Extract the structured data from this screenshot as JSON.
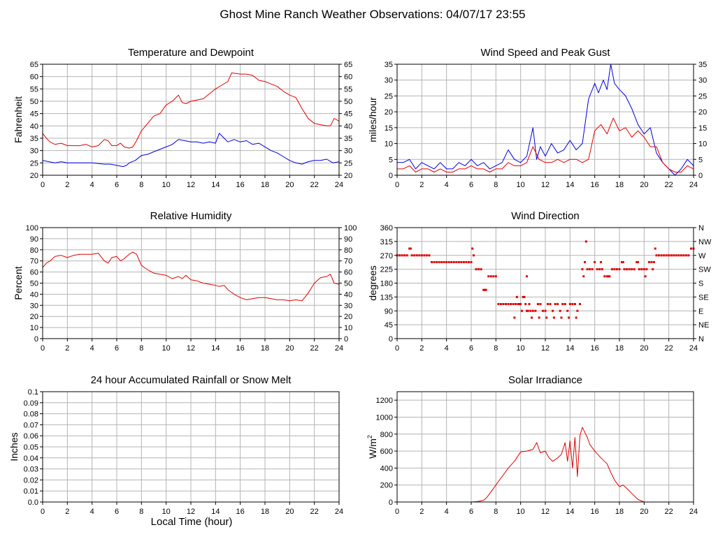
{
  "page_title": "Ghost Mine Ranch Weather Observations: 04/07/17 23:55",
  "x_axis_label": "Local Time (hour)",
  "x_ticks": [
    "0",
    "2",
    "4",
    "6",
    "8",
    "10",
    "12",
    "14",
    "16",
    "18",
    "20",
    "22",
    "24"
  ],
  "colors": {
    "red": "#e00000",
    "blue": "#0000e0",
    "grid": "#b4b4b4"
  },
  "chart_data": [
    {
      "type": "line",
      "title": "Temperature and Dewpoint",
      "xlabel": "",
      "ylabel": "Fahrenheit",
      "xlim": [
        0,
        24
      ],
      "ylim": [
        20,
        65
      ],
      "y_ticks": [
        "20",
        "25",
        "30",
        "35",
        "40",
        "45",
        "50",
        "55",
        "60",
        "65"
      ],
      "right_y_ticks": [
        "20",
        "25",
        "30",
        "35",
        "40",
        "45",
        "50",
        "55",
        "60",
        "65"
      ],
      "grid": true,
      "series": [
        {
          "color": "red",
          "x": [
            0,
            0.3,
            0.6,
            1,
            1.5,
            2,
            2.5,
            3,
            3.5,
            4,
            4.5,
            5,
            5.3,
            5.6,
            6,
            6.3,
            6.6,
            7,
            7.3,
            7.6,
            8,
            8.5,
            9,
            9.5,
            10,
            10.5,
            11,
            11.3,
            11.6,
            12,
            12.5,
            13,
            13.5,
            14,
            14.5,
            15,
            15.3,
            16,
            16.5,
            17,
            17.5,
            18,
            18.5,
            19,
            19.5,
            20,
            20.5,
            21,
            21.5,
            22,
            22.5,
            23,
            23.3,
            23.6,
            24
          ],
          "y": [
            37,
            35,
            33.5,
            32.5,
            33,
            32,
            32,
            32,
            32.5,
            31.5,
            32,
            34.5,
            34,
            32,
            32,
            33,
            31.5,
            31,
            31.5,
            34,
            38,
            41,
            44,
            45,
            48.5,
            50,
            52.5,
            49.5,
            49,
            50,
            50.5,
            51,
            53,
            55,
            56.5,
            58,
            61.5,
            61,
            61,
            60.5,
            58.5,
            58,
            57,
            56,
            54,
            52.5,
            51.5,
            47,
            43,
            41,
            40.5,
            40,
            40,
            43,
            42
          ]
        },
        {
          "color": "blue",
          "x": [
            0,
            0.5,
            1,
            1.5,
            2,
            3,
            4,
            5,
            5.5,
            6,
            6.5,
            6.8,
            7,
            7.5,
            8,
            8.5,
            9,
            9.5,
            10,
            10.5,
            11,
            11.5,
            12,
            12.5,
            13,
            13.5,
            14,
            14.3,
            14.7,
            15,
            15.5,
            16,
            16.5,
            17,
            17.5,
            18,
            18.5,
            19,
            19.5,
            20,
            20.5,
            21,
            21.5,
            22,
            22.5,
            23,
            23.5,
            24
          ],
          "y": [
            26,
            25.5,
            25,
            25.5,
            25,
            25,
            25,
            24.5,
            24.5,
            24,
            23.5,
            24,
            25,
            26,
            28,
            28.5,
            29.5,
            30.5,
            31.5,
            32.5,
            34.5,
            34,
            33.5,
            33.5,
            33,
            33.5,
            33,
            37,
            35,
            33.5,
            34.5,
            33.5,
            34,
            32.5,
            33,
            31.5,
            30,
            29,
            27.5,
            26,
            25,
            24.5,
            25.5,
            26,
            26,
            26.5,
            25,
            25.5
          ]
        }
      ]
    },
    {
      "type": "line",
      "title": "Wind Speed and Peak Gust",
      "xlabel": "",
      "ylabel": "miles/hour",
      "xlim": [
        0,
        24
      ],
      "ylim": [
        0,
        35
      ],
      "y_ticks": [
        "0",
        "5",
        "10",
        "15",
        "20",
        "25",
        "30",
        "35"
      ],
      "right_y_ticks": [
        "0",
        "5",
        "10",
        "15",
        "20",
        "25",
        "30",
        "35"
      ],
      "grid": true,
      "series": [
        {
          "color": "blue",
          "x": [
            0,
            0.5,
            1,
            1.5,
            2,
            2.5,
            3,
            3.5,
            4,
            4.5,
            5,
            5.5,
            6,
            6.5,
            7,
            7.5,
            8,
            8.5,
            9,
            9.5,
            10,
            10.5,
            11,
            11.3,
            11.6,
            12,
            12.5,
            13,
            13.5,
            14,
            14.5,
            15,
            15.5,
            16,
            16.3,
            16.7,
            17,
            17.3,
            17.6,
            18,
            18.5,
            19,
            19.5,
            20,
            20.5,
            21,
            21.5,
            22,
            22.5,
            23,
            23.5,
            24
          ],
          "y": [
            4,
            4,
            5,
            2,
            4,
            3,
            2,
            4,
            2,
            2,
            4,
            3,
            5,
            3,
            4,
            2,
            3,
            4,
            8,
            5,
            4,
            6,
            15,
            5,
            9,
            6,
            10,
            7,
            8,
            11,
            8,
            10,
            24,
            29,
            26,
            30,
            27,
            35,
            29,
            27,
            25,
            21,
            16,
            13,
            15,
            7,
            4,
            2,
            0,
            2,
            5,
            3
          ]
        },
        {
          "color": "red",
          "x": [
            0,
            0.5,
            1,
            1.5,
            2,
            2.5,
            3,
            3.5,
            4,
            4.5,
            5,
            5.5,
            6,
            6.5,
            7,
            7.5,
            8,
            8.5,
            9,
            9.5,
            10,
            10.5,
            11,
            11.5,
            12,
            12.5,
            13,
            13.5,
            14,
            14.5,
            15,
            15.5,
            16,
            16.5,
            17,
            17.5,
            18,
            18.5,
            19,
            19.5,
            20,
            20.5,
            21,
            21.5,
            22,
            22.5,
            23,
            23.5,
            24
          ],
          "y": [
            2,
            2,
            3,
            1,
            2,
            2,
            1,
            2,
            1,
            1,
            2,
            2,
            3,
            2,
            2,
            1,
            2,
            2,
            4,
            3,
            3,
            4,
            9,
            5,
            4,
            4,
            5,
            4,
            5,
            5,
            4,
            5,
            14,
            16,
            13,
            18,
            14,
            15,
            12,
            14,
            12,
            9,
            9,
            4,
            2,
            1,
            1,
            3,
            2
          ]
        }
      ]
    },
    {
      "type": "line",
      "title": "Relative Humidity",
      "xlabel": "",
      "ylabel": "Percent",
      "xlim": [
        0,
        24
      ],
      "ylim": [
        0,
        100
      ],
      "y_ticks": [
        "0",
        "10",
        "20",
        "30",
        "40",
        "50",
        "60",
        "70",
        "80",
        "90",
        "100"
      ],
      "right_y_ticks": [
        "0",
        "10",
        "20",
        "30",
        "40",
        "50",
        "60",
        "70",
        "80",
        "90",
        "100"
      ],
      "grid": true,
      "series": [
        {
          "color": "red",
          "x": [
            0,
            0.3,
            0.6,
            1,
            1.5,
            2,
            2.5,
            3,
            3.5,
            4,
            4.5,
            5,
            5.3,
            5.6,
            6,
            6.3,
            6.6,
            7,
            7.3,
            7.6,
            8,
            8.5,
            9,
            9.5,
            10,
            10.5,
            11,
            11.3,
            11.6,
            12,
            12.5,
            13,
            13.5,
            14,
            14.3,
            14.7,
            15,
            15.5,
            16,
            16.5,
            17,
            17.5,
            18,
            18.5,
            19,
            19.5,
            20,
            20.5,
            21,
            21.5,
            22,
            22.5,
            23,
            23.3,
            23.6,
            24
          ],
          "y": [
            64,
            68,
            70,
            74,
            75,
            73,
            75,
            76,
            76,
            76,
            77,
            70,
            68,
            73,
            74,
            70,
            72,
            76,
            78,
            76,
            66,
            62,
            59,
            58,
            57,
            54,
            56,
            54,
            57,
            53,
            52,
            50,
            49,
            48,
            47,
            48,
            44,
            40,
            37,
            35,
            36,
            37,
            37,
            36,
            35,
            35,
            34,
            35,
            34,
            41,
            50,
            55,
            56,
            58,
            50,
            49
          ]
        }
      ]
    },
    {
      "type": "scatter",
      "title": "Wind Direction",
      "xlabel": "",
      "ylabel": "degrees",
      "xlim": [
        0,
        24
      ],
      "ylim": [
        0,
        360
      ],
      "y_ticks": [
        "0",
        "45",
        "90",
        "135",
        "180",
        "225",
        "270",
        "315",
        "360"
      ],
      "right_y_ticks": [
        "N",
        "NE",
        "E",
        "SE",
        "S",
        "SW",
        "W",
        "NW",
        "N"
      ],
      "grid": true,
      "series": [
        {
          "color": "red",
          "x": [
            0,
            0.2,
            0.4,
            0.6,
            0.8,
            1,
            1.2,
            1.4,
            1.6,
            1.8,
            2,
            2.2,
            2.4,
            2.6,
            2.8,
            3,
            3.2,
            3.4,
            3.6,
            3.8,
            4,
            4.2,
            4.4,
            4.6,
            4.8,
            5,
            5.2,
            5.4,
            5.6,
            5.8,
            6,
            6.2,
            6.4,
            6.6,
            6.8,
            7,
            7.2,
            7.4,
            7.6,
            7.8,
            8,
            8.2,
            8.4,
            8.6,
            8.8,
            9,
            9.2,
            9.4,
            9.6,
            9.8,
            10,
            10.2,
            10.4,
            10.6,
            10.8,
            11,
            11.2,
            11.4,
            11.6,
            11.8,
            12,
            12.2,
            12.4,
            12.6,
            12.8,
            13,
            13.2,
            13.4,
            13.6,
            13.8,
            14,
            14.2,
            14.4,
            14.6,
            14.8,
            15,
            15.2,
            15.4,
            15.6,
            15.8,
            16,
            16.2,
            16.4,
            16.6,
            16.8,
            17,
            17.2,
            17.4,
            17.6,
            17.8,
            18,
            18.2,
            18.4,
            18.6,
            18.8,
            19,
            19.2,
            19.4,
            19.6,
            19.8,
            20,
            20.2,
            20.4,
            20.6,
            20.8,
            21,
            21.2,
            21.4,
            21.6,
            21.8,
            22,
            22.2,
            22.4,
            22.6,
            22.8,
            23,
            23.2,
            23.4,
            23.6,
            23.8,
            24,
            9.5,
            9.7,
            9.9,
            10.1,
            10.3,
            10.5,
            10.7,
            10.9,
            11.5,
            12.1,
            12.7,
            13.3,
            13.9,
            14.5,
            15.1,
            15.3,
            16.5,
            17.1,
            18.3,
            19.5,
            20.1,
            20.7,
            20.9,
            6.1,
            1.1,
            7.1,
            10.5
          ],
          "y": [
            270,
            270,
            270,
            270,
            270,
            292,
            270,
            270,
            270,
            270,
            270,
            270,
            270,
            270,
            248,
            248,
            248,
            248,
            248,
            248,
            248,
            248,
            248,
            248,
            248,
            248,
            248,
            248,
            248,
            248,
            248,
            270,
            225,
            225,
            225,
            158,
            158,
            202,
            202,
            202,
            202,
            112,
            112,
            112,
            112,
            112,
            112,
            112,
            112,
            112,
            112,
            135,
            112,
            90,
            90,
            90,
            90,
            112,
            112,
            90,
            90,
            112,
            112,
            90,
            112,
            112,
            90,
            112,
            112,
            90,
            112,
            112,
            112,
            90,
            112,
            225,
            248,
            225,
            225,
            225,
            248,
            225,
            225,
            225,
            202,
            202,
            202,
            225,
            225,
            225,
            225,
            248,
            225,
            225,
            225,
            225,
            225,
            248,
            225,
            225,
            225,
            225,
            248,
            248,
            248,
            270,
            270,
            270,
            270,
            270,
            270,
            270,
            270,
            270,
            270,
            270,
            270,
            270,
            270,
            292,
            292,
            68,
            135,
            112,
            90,
            135,
            90,
            112,
            68,
            68,
            68,
            68,
            68,
            68,
            68,
            202,
            315,
            248,
            202,
            248,
            248,
            202,
            225,
            292,
            292,
            292,
            158,
            202
          ]
        }
      ]
    },
    {
      "type": "line",
      "title": "24 hour Accumulated Rainfall or Snow Melt",
      "xlabel": "Local Time (hour)",
      "ylabel": "Inches",
      "xlim": [
        0,
        24
      ],
      "ylim": [
        0,
        0.1
      ],
      "y_ticks": [
        "0.0",
        "0.01",
        "0.02",
        "0.03",
        "0.04",
        "0.05",
        "0.06",
        "0.07",
        "0.08",
        "0.09",
        "0.1"
      ],
      "grid": true,
      "series": [
        {
          "color": "red",
          "x": [
            0,
            24
          ],
          "y": [
            0,
            0
          ]
        }
      ]
    },
    {
      "type": "line",
      "title": "Solar Irradiance",
      "xlabel": "",
      "ylabel": "W/m",
      "ylabel_sup": "2",
      "xlim": [
        0,
        24
      ],
      "ylim": [
        0,
        1300
      ],
      "y_ticks": [
        "0",
        "200",
        "400",
        "600",
        "800",
        "1000",
        "1200"
      ],
      "grid": true,
      "series": [
        {
          "color": "red",
          "x": [
            0,
            6,
            6.5,
            7,
            7.3,
            7.6,
            8,
            8.5,
            9,
            9.5,
            10,
            10.5,
            11,
            11.3,
            11.6,
            12,
            12.3,
            12.6,
            13,
            13.3,
            13.6,
            13.8,
            14,
            14.2,
            14.4,
            14.6,
            14.8,
            15,
            15.2,
            15.4,
            15.6,
            16,
            16.5,
            17,
            17.3,
            17.6,
            18,
            18.3,
            18.6,
            19,
            19.5,
            20,
            24
          ],
          "y": [
            0,
            0,
            5,
            20,
            60,
            120,
            200,
            300,
            400,
            480,
            590,
            600,
            620,
            700,
            580,
            600,
            520,
            480,
            520,
            560,
            700,
            480,
            720,
            400,
            760,
            300,
            780,
            880,
            820,
            760,
            680,
            600,
            520,
            450,
            350,
            260,
            180,
            200,
            160,
            100,
            30,
            0,
            0
          ]
        }
      ]
    }
  ]
}
